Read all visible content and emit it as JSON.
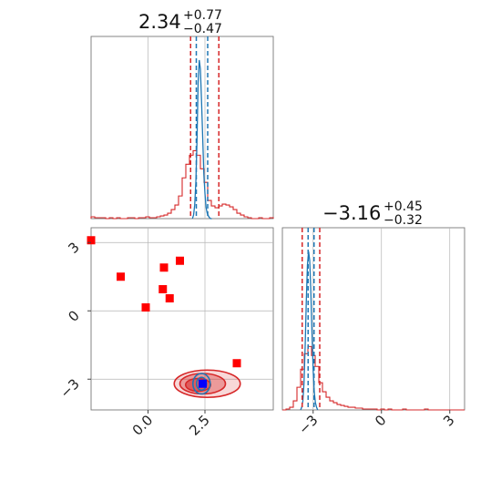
{
  "chart_data": {
    "type": "corner",
    "params": [
      {
        "median": "2.34",
        "plus": "+0.77",
        "minus": "−0.47",
        "range": [
          -2.5,
          5.5
        ],
        "ticks": [
          0,
          2.5
        ],
        "tick_labels": [
          "0.0",
          "2.5"
        ],
        "quantiles_red": [
          1.87,
          3.11
        ],
        "quantiles_blue": [
          2.12,
          2.62
        ],
        "hist_red": {
          "edges_start": -2.5,
          "bin_width": 0.16,
          "counts": [
            2,
            1,
            1,
            1,
            0,
            1,
            0,
            1,
            0,
            0,
            1,
            1,
            0,
            1,
            1,
            2,
            1,
            1,
            2,
            3,
            4,
            6,
            10,
            15,
            25,
            45,
            60,
            70,
            75,
            70,
            55,
            40,
            20,
            14,
            12,
            14,
            16,
            15,
            13,
            10,
            6,
            4,
            2,
            1,
            0,
            0,
            1,
            0,
            0,
            1
          ]
        },
        "hist_blue": {
          "x": [
            1.95,
            2.0,
            2.05,
            2.1,
            2.15,
            2.2,
            2.25,
            2.3,
            2.35,
            2.4,
            2.45,
            2.5,
            2.55,
            2.6,
            2.65,
            2.7,
            2.75,
            2.8
          ],
          "y": [
            0,
            4,
            15,
            40,
            85,
            150,
            175,
            165,
            130,
            90,
            50,
            28,
            12,
            6,
            3,
            1,
            0,
            0
          ]
        },
        "ymax": 185
      },
      {
        "median": "−3.16",
        "plus": "+0.45",
        "minus": "−0.32",
        "range": [
          -4.35,
          3.65
        ],
        "ticks": [
          -3,
          0,
          3
        ],
        "tick_labels": [
          "−3",
          "0",
          "3"
        ],
        "quantiles_red": [
          -3.48,
          -2.71
        ],
        "quantiles_blue": [
          -3.22,
          -2.96
        ],
        "hist_red": {
          "edges_start": -4.35,
          "bin_width": 0.16,
          "counts": [
            0,
            1,
            3,
            10,
            25,
            45,
            62,
            70,
            60,
            48,
            30,
            20,
            14,
            10,
            8,
            6,
            5,
            4,
            3,
            3,
            2,
            2,
            1,
            1,
            1,
            1,
            0,
            1,
            0,
            1,
            0,
            0,
            0,
            1,
            0,
            0,
            0,
            0,
            0,
            1,
            0,
            0,
            0,
            0,
            0,
            0,
            0,
            0,
            0,
            0
          ]
        },
        "hist_blue": {
          "x": [
            -3.55,
            -3.5,
            -3.45,
            -3.4,
            -3.35,
            -3.3,
            -3.25,
            -3.2,
            -3.15,
            -3.1,
            -3.05,
            -3.0,
            -2.95,
            -2.9,
            -2.85,
            -2.8
          ],
          "y": [
            0,
            3,
            10,
            30,
            70,
            120,
            160,
            175,
            165,
            130,
            85,
            45,
            20,
            8,
            3,
            0
          ]
        },
        "ymax": 185
      }
    ],
    "scatter_2d": {
      "red_squares": [
        {
          "x": -2.5,
          "y": 3.1
        },
        {
          "x": -1.2,
          "y": 1.5
        },
        {
          "x": 0.7,
          "y": 1.9
        },
        {
          "x": 1.4,
          "y": 2.2
        },
        {
          "x": 0.65,
          "y": 0.95
        },
        {
          "x": 0.95,
          "y": 0.55
        },
        {
          "x": -0.1,
          "y": 0.15
        },
        {
          "x": 3.9,
          "y": -2.3
        }
      ],
      "blue_square": {
        "x": 2.4,
        "y": -3.2
      },
      "red_contours": [
        {
          "cx": 2.6,
          "cy": -3.2,
          "rx": 1.45,
          "ry": 0.6,
          "opacity": 0.18
        },
        {
          "cx": 2.4,
          "cy": -3.2,
          "rx": 1.0,
          "ry": 0.45,
          "opacity": 0.35
        },
        {
          "cx": 2.2,
          "cy": -3.25,
          "rx": 0.55,
          "ry": 0.28,
          "opacity": 0.55
        }
      ],
      "blue_contours": [
        {
          "cx": 2.35,
          "cy": -3.2,
          "rx": 0.38,
          "ry": 0.45
        },
        {
          "cx": 2.35,
          "cy": -3.2,
          "rx": 0.22,
          "ry": 0.28
        }
      ]
    },
    "colors": {
      "red": "#d62728",
      "blue": "#1f77b4",
      "grid": "#b5b5b5"
    },
    "grid": true
  }
}
